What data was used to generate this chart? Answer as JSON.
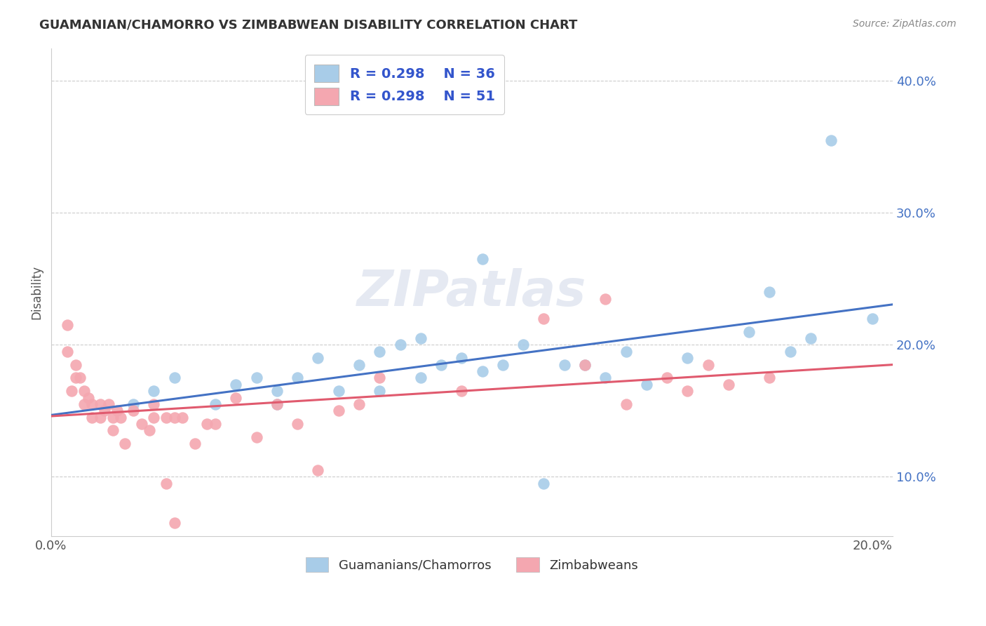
{
  "title": "GUAMANIAN/CHAMORRO VS ZIMBABWEAN DISABILITY CORRELATION CHART",
  "source": "Source: ZipAtlas.com",
  "ylabel": "Disability",
  "xlim": [
    0.0,
    0.205
  ],
  "ylim": [
    0.055,
    0.425
  ],
  "yticks": [
    0.1,
    0.2,
    0.3,
    0.4
  ],
  "ytick_labels": [
    "10.0%",
    "20.0%",
    "30.0%",
    "40.0%"
  ],
  "legend_r1": "R = 0.298",
  "legend_n1": "N = 36",
  "legend_r2": "R = 0.298",
  "legend_n2": "N = 51",
  "blue_color": "#a8cce8",
  "pink_color": "#f4a7b0",
  "line_blue": "#4472c4",
  "line_pink": "#e05a6e",
  "legend_text_color": "#3355cc",
  "watermark": "ZIPatlas",
  "blue_scatter_x": [
    0.02,
    0.025,
    0.03,
    0.04,
    0.045,
    0.05,
    0.055,
    0.055,
    0.06,
    0.065,
    0.07,
    0.075,
    0.08,
    0.08,
    0.085,
    0.09,
    0.09,
    0.095,
    0.1,
    0.105,
    0.105,
    0.11,
    0.115,
    0.12,
    0.125,
    0.13,
    0.135,
    0.14,
    0.145,
    0.155,
    0.17,
    0.175,
    0.18,
    0.185,
    0.19,
    0.2
  ],
  "blue_scatter_y": [
    0.155,
    0.165,
    0.175,
    0.155,
    0.17,
    0.175,
    0.155,
    0.165,
    0.175,
    0.19,
    0.165,
    0.185,
    0.165,
    0.195,
    0.2,
    0.205,
    0.175,
    0.185,
    0.19,
    0.18,
    0.265,
    0.185,
    0.2,
    0.095,
    0.185,
    0.185,
    0.175,
    0.195,
    0.17,
    0.19,
    0.21,
    0.24,
    0.195,
    0.205,
    0.355,
    0.22
  ],
  "pink_scatter_x": [
    0.004,
    0.004,
    0.005,
    0.006,
    0.006,
    0.007,
    0.008,
    0.008,
    0.009,
    0.01,
    0.01,
    0.012,
    0.012,
    0.013,
    0.014,
    0.015,
    0.015,
    0.016,
    0.017,
    0.018,
    0.02,
    0.022,
    0.024,
    0.025,
    0.025,
    0.028,
    0.028,
    0.03,
    0.03,
    0.032,
    0.035,
    0.038,
    0.04,
    0.045,
    0.05,
    0.055,
    0.06,
    0.065,
    0.07,
    0.075,
    0.08,
    0.1,
    0.12,
    0.13,
    0.135,
    0.14,
    0.15,
    0.155,
    0.16,
    0.165,
    0.175
  ],
  "pink_scatter_y": [
    0.215,
    0.195,
    0.165,
    0.185,
    0.175,
    0.175,
    0.165,
    0.155,
    0.16,
    0.155,
    0.145,
    0.155,
    0.145,
    0.15,
    0.155,
    0.145,
    0.135,
    0.15,
    0.145,
    0.125,
    0.15,
    0.14,
    0.135,
    0.155,
    0.145,
    0.145,
    0.095,
    0.145,
    0.065,
    0.145,
    0.125,
    0.14,
    0.14,
    0.16,
    0.13,
    0.155,
    0.14,
    0.105,
    0.15,
    0.155,
    0.175,
    0.165,
    0.22,
    0.185,
    0.235,
    0.155,
    0.175,
    0.165,
    0.185,
    0.17,
    0.175
  ]
}
